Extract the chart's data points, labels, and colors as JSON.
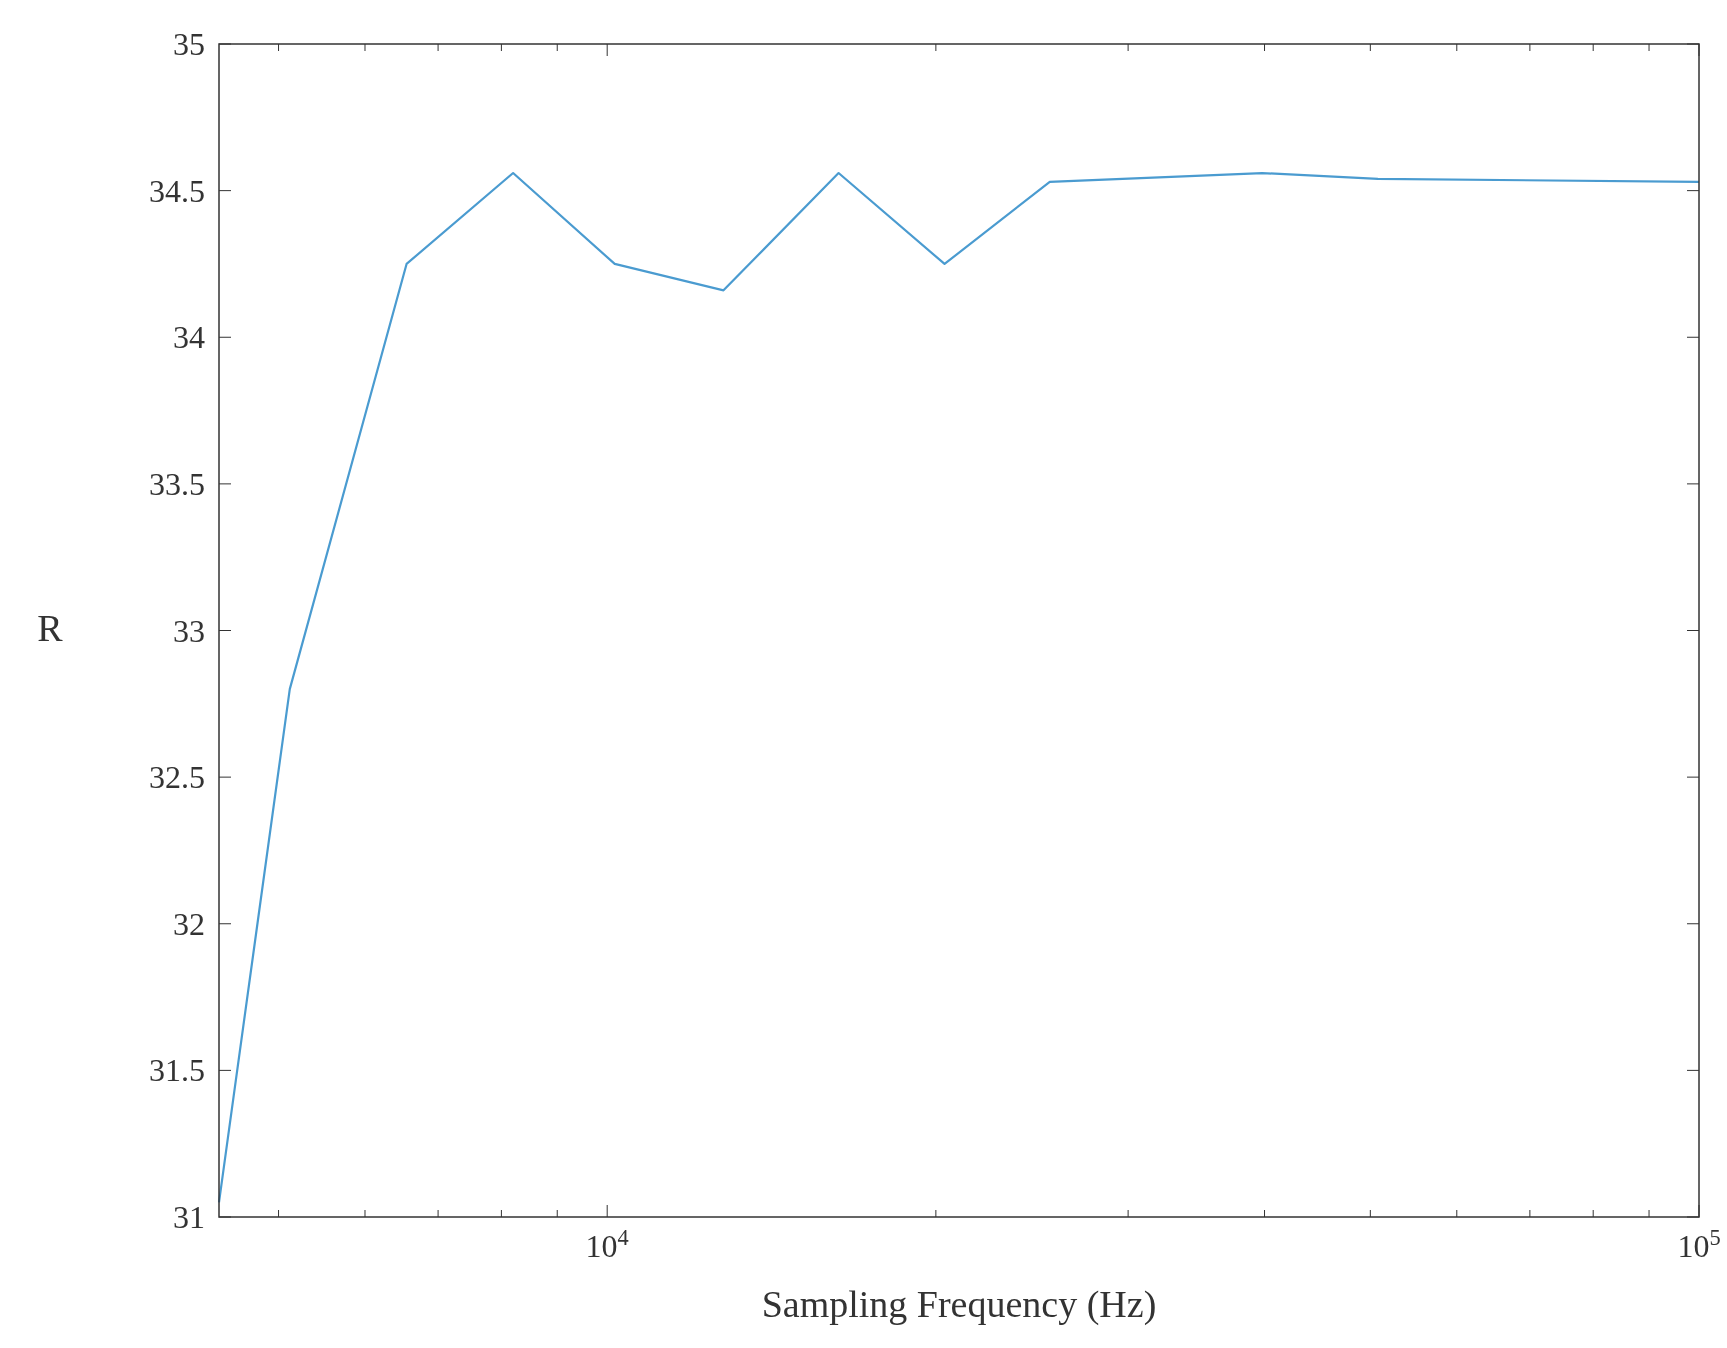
{
  "chart_data": {
    "type": "line",
    "xlabel": "Sampling Frequency (Hz)",
    "ylabel": "R",
    "log": "x",
    "grid": false,
    "color": "#4a9bd0",
    "x": [
      4410,
      5120,
      6550,
      8200,
      10160,
      12780,
      16290,
      20370,
      25430,
      39800,
      50800,
      100000
    ],
    "values": [
      31.05,
      32.8,
      34.25,
      34.56,
      34.25,
      34.16,
      34.56,
      34.25,
      34.53,
      34.56,
      34.54,
      34.53
    ],
    "xlim": [
      4410,
      100000
    ],
    "xticks": [
      {
        "value": 5000,
        "label": null
      },
      {
        "value": 6000,
        "label": null
      },
      {
        "value": 7000,
        "label": null
      },
      {
        "value": 8000,
        "label": null
      },
      {
        "value": 9000,
        "label": null
      },
      {
        "value": 10000,
        "label": "10$^{4}$"
      },
      {
        "value": 20000,
        "label": null
      },
      {
        "value": 30000,
        "label": null
      },
      {
        "value": 40000,
        "label": null
      },
      {
        "value": 50000,
        "label": null
      },
      {
        "value": 60000,
        "label": null
      },
      {
        "value": 70000,
        "label": null
      },
      {
        "value": 80000,
        "label": null
      },
      {
        "value": 90000,
        "label": null
      },
      {
        "value": 100000,
        "label": "10$^{5}$"
      }
    ],
    "ylim": [
      31,
      35
    ],
    "yticks": [
      31,
      31.5,
      32,
      32.5,
      33,
      33.5,
      34,
      34.5,
      35
    ]
  }
}
